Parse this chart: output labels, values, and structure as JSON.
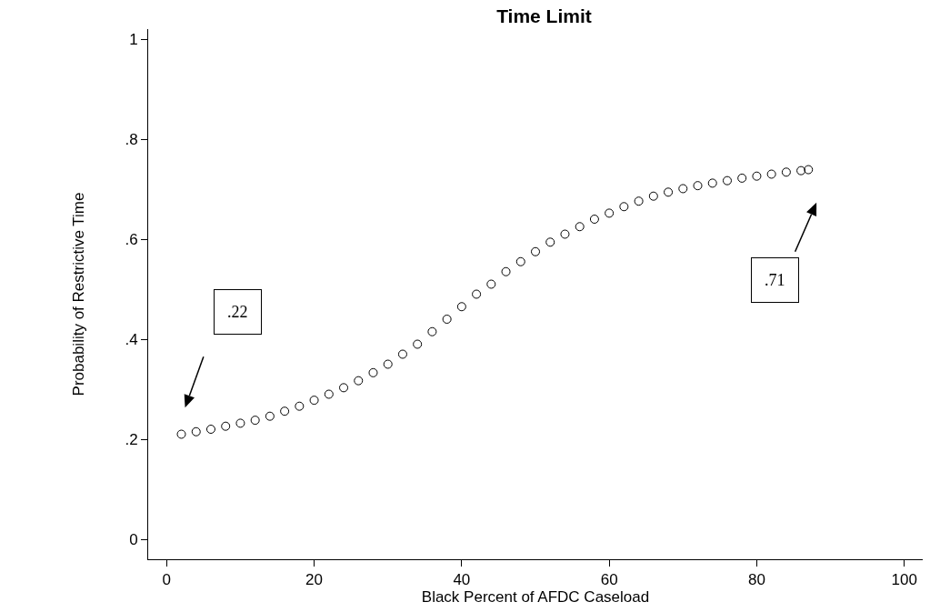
{
  "chart_data": {
    "type": "scatter",
    "title": "Time Limit",
    "xlabel": "Black Percent of AFDC Caseload",
    "ylabel": "Probability of Restrictive Time",
    "x": [
      2,
      4,
      6,
      8,
      10,
      12,
      14,
      16,
      18,
      20,
      22,
      24,
      26,
      28,
      30,
      32,
      34,
      36,
      38,
      40,
      42,
      44,
      46,
      48,
      50,
      52,
      54,
      56,
      58,
      60,
      62,
      64,
      66,
      68,
      70,
      72,
      74,
      76,
      78,
      80,
      82,
      84,
      86,
      87
    ],
    "values": [
      0.21,
      0.215,
      0.22,
      0.226,
      0.232,
      0.238,
      0.246,
      0.256,
      0.266,
      0.278,
      0.29,
      0.303,
      0.317,
      0.333,
      0.35,
      0.37,
      0.39,
      0.415,
      0.44,
      0.465,
      0.49,
      0.51,
      0.535,
      0.555,
      0.575,
      0.594,
      0.61,
      0.625,
      0.64,
      0.652,
      0.665,
      0.676,
      0.686,
      0.694,
      0.701,
      0.707,
      0.712,
      0.717,
      0.722,
      0.726,
      0.73,
      0.734,
      0.737,
      0.739
    ],
    "color": "#000000",
    "marker": "circle",
    "xlim": [
      -2.5,
      102.5
    ],
    "xticks": [
      0,
      20,
      40,
      60,
      80,
      100
    ],
    "ylim": [
      -0.04,
      1.02
    ],
    "yticks": [
      0,
      {
        "value": 0.2,
        "label": ".2"
      },
      {
        "value": 0.4,
        "label": ".4"
      },
      {
        "value": 0.6,
        "label": ".6"
      },
      {
        "value": 0.8,
        "label": ".8"
      },
      1
    ],
    "annotations": [
      ".22",
      ".71"
    ]
  }
}
